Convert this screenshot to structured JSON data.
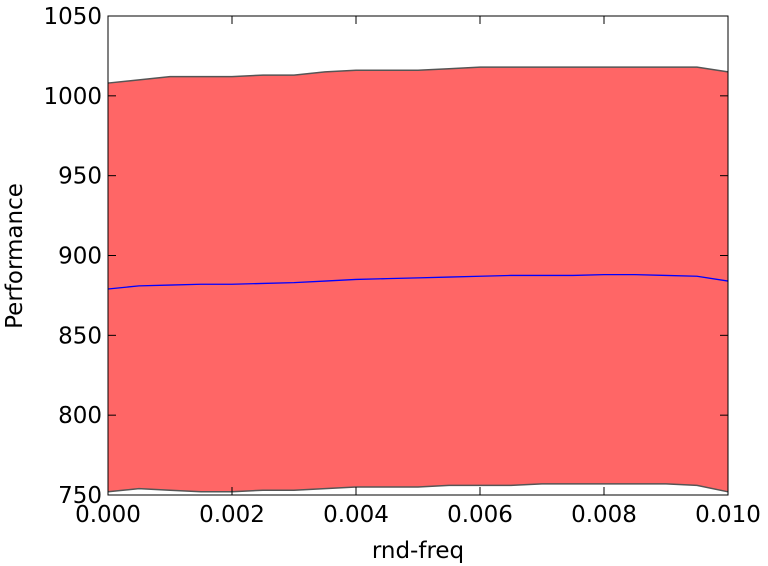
{
  "chart_data": {
    "type": "line",
    "x_label": "rnd-freq",
    "y_label": "Performance",
    "x": [
      0,
      0.0005,
      0.001,
      0.0015,
      0.002,
      0.0025,
      0.003,
      0.0035,
      0.004,
      0.0045,
      0.005,
      0.0055,
      0.006,
      0.0065,
      0.007,
      0.0075,
      0.008,
      0.0085,
      0.009,
      0.0095,
      0.01
    ],
    "series": [
      {
        "color": "#0000ff",
        "values": [
          879,
          881,
          881.5,
          882,
          882,
          882.5,
          883,
          884,
          885,
          885.5,
          886,
          886.5,
          887,
          887.5,
          887.5,
          887.5,
          888,
          888,
          887.5,
          887,
          884
        ]
      }
    ],
    "band": {
      "color": "#ff6666",
      "edgecolor": "#555555",
      "upper": [
        1008,
        1010,
        1012,
        1012,
        1012,
        1013,
        1013,
        1015,
        1016,
        1016,
        1016,
        1017,
        1018,
        1018,
        1018,
        1018,
        1018,
        1018,
        1018,
        1018,
        1015
      ],
      "lower": [
        752,
        754,
        753,
        752,
        752,
        753,
        753,
        754,
        755,
        755,
        755,
        756,
        756,
        756,
        757,
        757,
        757,
        757,
        757,
        756,
        752
      ]
    },
    "xlim": [
      0,
      0.01
    ],
    "ylim": [
      750,
      1050
    ],
    "xticks": [
      {
        "value": 0,
        "label": "0.000"
      },
      {
        "value": 0.002,
        "label": "0.002"
      },
      {
        "value": 0.004,
        "label": "0.004"
      },
      {
        "value": 0.006,
        "label": "0.006"
      },
      {
        "value": 0.008,
        "label": "0.008"
      },
      {
        "value": 0.01,
        "label": "0.010"
      }
    ],
    "yticks": [
      750,
      800,
      850,
      900,
      950,
      1000,
      1050
    ]
  }
}
